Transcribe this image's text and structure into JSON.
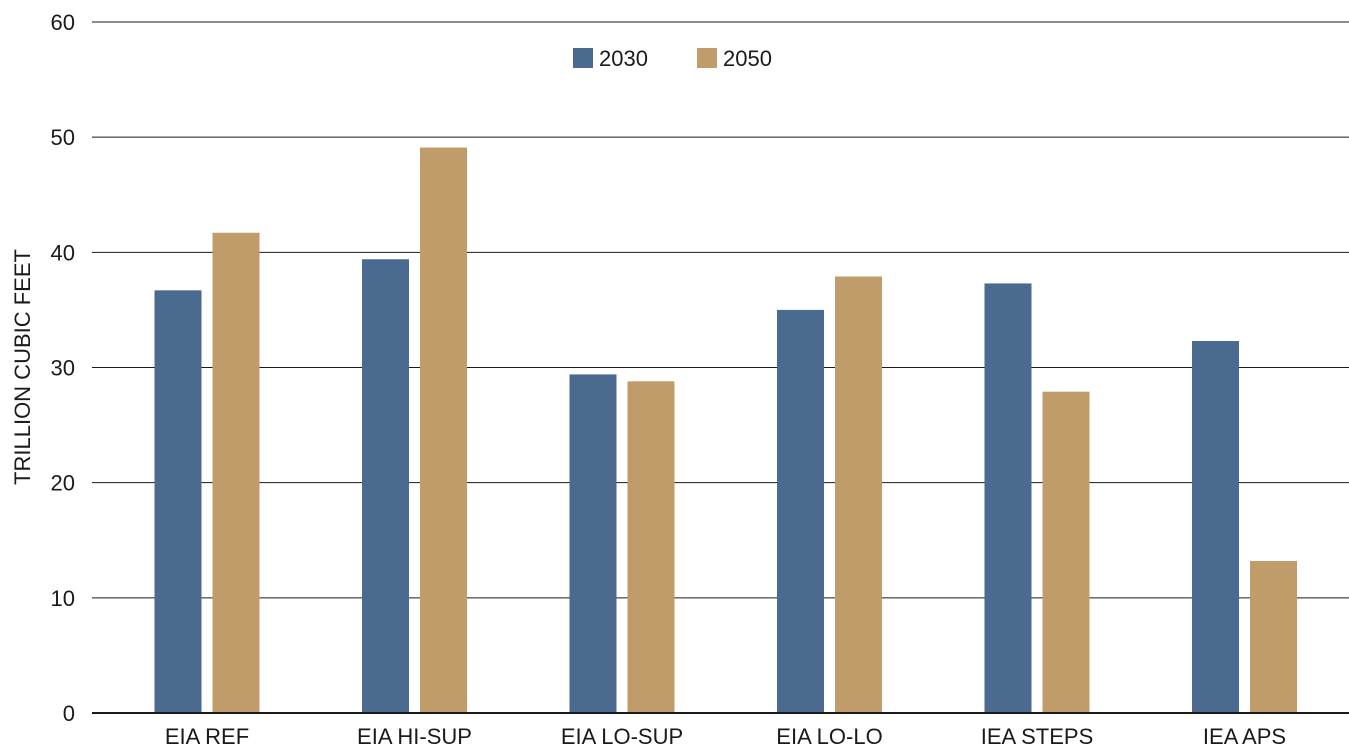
{
  "chart_data": {
    "type": "bar",
    "title": "",
    "xlabel": "",
    "ylabel": "TRILLION CUBIC FEET",
    "ylim": [
      0,
      60
    ],
    "yticks": [
      0,
      10,
      20,
      30,
      40,
      50,
      60
    ],
    "grid": true,
    "legend_position": "top-center",
    "categories": [
      "EIA REF",
      "EIA HI-SUP",
      "EIA LO-SUP",
      "EIA LO-LO",
      "IEA STEPS",
      "IEA APS"
    ],
    "series": [
      {
        "name": "2030",
        "color": "#4a6a8f",
        "values": [
          36.7,
          39.4,
          29.4,
          35.0,
          37.3,
          32.3
        ]
      },
      {
        "name": "2050",
        "color": "#bf9c69",
        "values": [
          41.7,
          49.1,
          28.8,
          37.9,
          27.9,
          13.2
        ]
      }
    ]
  }
}
